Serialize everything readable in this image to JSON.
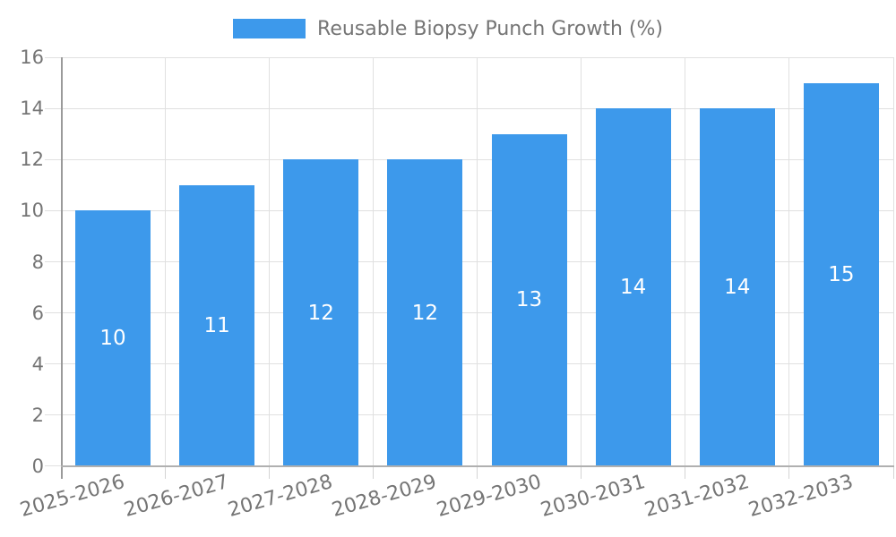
{
  "chart_data": {
    "type": "bar",
    "categories": [
      "2025-2026",
      "2026-2027",
      "2027-2028",
      "2028-2029",
      "2029-2030",
      "2030-2031",
      "2031-2032",
      "2032-2033"
    ],
    "series": [
      {
        "name": "Reusable Biopsy Punch Growth (%)",
        "values": [
          10,
          11,
          12,
          12,
          13,
          14,
          14,
          15
        ],
        "color": "#3D99EB"
      }
    ],
    "value_labels_shown": true,
    "ylim": [
      0,
      16
    ],
    "yticks": [
      0,
      2,
      4,
      6,
      8,
      10,
      12,
      14,
      16
    ],
    "ytick_step": 2,
    "grid": true,
    "legend_position": "top-center",
    "x_label_rotation_deg": -16,
    "colors": {
      "bar": "#3D99EB",
      "value_label": "#ffffff",
      "axis_text": "#757575",
      "gridline": "#e0e0e0",
      "axis_line": "#9a9a9a"
    }
  }
}
